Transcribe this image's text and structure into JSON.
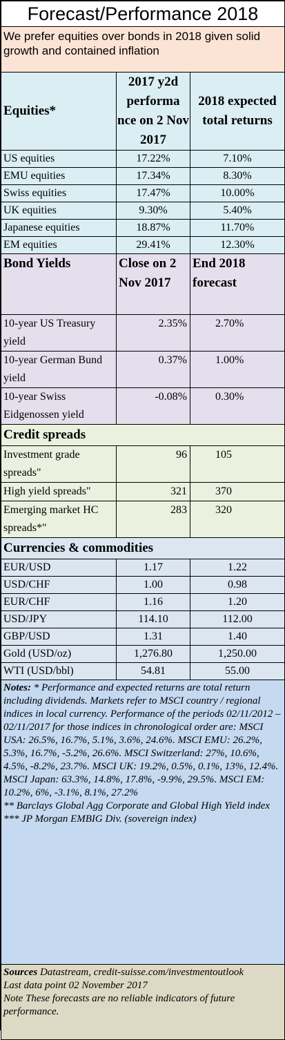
{
  "title": "Forecast/Performance 2018",
  "intro": "We prefer equities over bonds in 2018 given solid growth and contained inflation",
  "equities": {
    "header": {
      "label": "Equities*",
      "col1": "2017 y2d performa nce on 2 Nov 2017",
      "col2": "2018 expected total returns"
    },
    "rows": [
      {
        "name": "US equities",
        "perf": "17.22%",
        "exp": "7.10%"
      },
      {
        "name": "EMU equities",
        "perf": "17.34%",
        "exp": "8.30%"
      },
      {
        "name": "Swiss equities",
        "perf": "17.47%",
        "exp": "10.00%"
      },
      {
        "name": "UK equities",
        "perf": "9.30%",
        "exp": "5.40%"
      },
      {
        "name": "Japanese equities",
        "perf": "18.87%",
        "exp": "11.70%"
      },
      {
        "name": "EM equities",
        "perf": "29.41%",
        "exp": "12.30%"
      }
    ]
  },
  "bonds": {
    "header": {
      "label": "Bond Yields",
      "col1": "Close on 2 Nov 2017",
      "col2": "End 2018 forecast"
    },
    "rows": [
      {
        "name": "10-year US Treasury yield",
        "close": "2.35%",
        "forecast": "2.70%"
      },
      {
        "name": "10-year German Bund yield",
        "close": "0.37%",
        "forecast": "1.00%"
      },
      {
        "name": "10-year Swiss Eidgenossen yield",
        "close": "-0.08%",
        "forecast": "0.30%"
      }
    ]
  },
  "credit": {
    "header": "Credit spreads",
    "rows": [
      {
        "name": "Investment grade spreads\"",
        "close": "96",
        "forecast": "105"
      },
      {
        "name": "High yield spreads\"",
        "close": "321",
        "forecast": "370"
      },
      {
        "name": "Emerging market HC spreads*\"",
        "close": "283",
        "forecast": "320"
      }
    ]
  },
  "currencies": {
    "header": "Currencies & commodities",
    "rows": [
      {
        "name": "EUR/USD",
        "close": "1.17",
        "forecast": "1.22"
      },
      {
        "name": "USD/CHF",
        "close": "1.00",
        "forecast": "0.98"
      },
      {
        "name": "EUR/CHF",
        "close": "1.16",
        "forecast": "1.20"
      },
      {
        "name": "USD/JPY",
        "close": "114.10",
        "forecast": "112.00"
      },
      {
        "name": "GBP/USD",
        "close": "1.31",
        "forecast": "1.40"
      },
      {
        "name": "Gold (USD/oz)",
        "close": "1,276.80",
        "forecast": "1,250.00"
      },
      {
        "name": "WTI (USD/bbl)",
        "close": "54.81",
        "forecast": "55.00"
      }
    ]
  },
  "notes": {
    "label": "Notes:",
    "text": " * Performance and expected returns are total return including dividends. Markets refer to MSCI country / regional indices in local currency. Performance of the periods 02/11/2012 – 02/11/2017 for those indices in chronological order are: MSCI USA: 26.5%, 16.7%, 5.1%, 3.6%, 24.6%. MSCI EMU: 26.2%, 5.3%, 16.7%, -5.2%, 26.6%. MSCI Switzerland: 27%, 10.6%, 4.5%, -8.2%, 23.7%. MSCI UK: 19.2%, 0.5%, 0.1%, 13%, 12.4%. MSCI Japan: 63.3%, 14.8%, 17.8%, -9.9%, 29.5%. MSCI EM: 10.2%, 6%, -3.1%, 8.1%, 27.2%",
    "line2": "** Barclays Global Agg Corporate and Global High Yield index",
    "line3": "*** JP Morgan EMBIG Div. (sovereign index)"
  },
  "sources": {
    "label": "Sources",
    "text": " Datastream, credit-suisse.com/investmentoutlook",
    "line2": "Last data point 02 November 2017",
    "line3": "Note These forecasts are no reliable indicators of future performance."
  }
}
